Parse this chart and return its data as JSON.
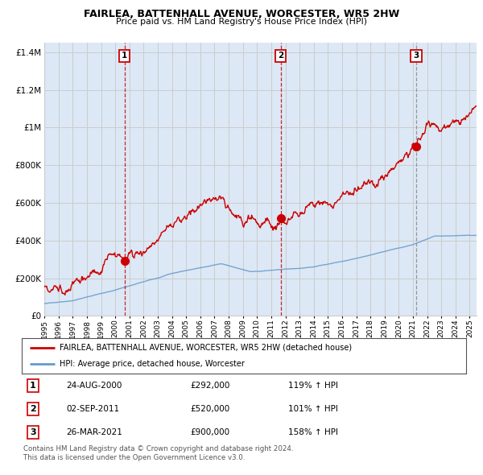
{
  "title": "FAIRLEA, BATTENHALL AVENUE, WORCESTER, WR5 2HW",
  "subtitle": "Price paid vs. HM Land Registry's House Price Index (HPI)",
  "ylabel_ticks": [
    "£0",
    "£200K",
    "£400K",
    "£600K",
    "£800K",
    "£1M",
    "£1.2M",
    "£1.4M"
  ],
  "ytick_values": [
    0,
    200000,
    400000,
    600000,
    800000,
    1000000,
    1200000,
    1400000
  ],
  "ylim": [
    0,
    1450000
  ],
  "xlim_start": 1995.0,
  "xlim_end": 2025.5,
  "sale_points": [
    {
      "year": 2000.65,
      "price": 292000,
      "label": "1",
      "date": "24-AUG-2000",
      "price_str": "£292,000",
      "hpi_pct": "119% ↑ HPI"
    },
    {
      "year": 2011.67,
      "price": 520000,
      "label": "2",
      "date": "02-SEP-2011",
      "price_str": "£520,000",
      "hpi_pct": "101% ↑ HPI"
    },
    {
      "year": 2021.23,
      "price": 900000,
      "label": "3",
      "date": "26-MAR-2021",
      "price_str": "£900,000",
      "hpi_pct": "158% ↑ HPI"
    }
  ],
  "sale_line_colors": [
    "#cc0000",
    "#cc0000",
    "#888888"
  ],
  "sale_line_styles": [
    "--",
    "--",
    "--"
  ],
  "xtick_years": [
    1995,
    1996,
    1997,
    1998,
    1999,
    2000,
    2001,
    2002,
    2003,
    2004,
    2005,
    2006,
    2007,
    2008,
    2009,
    2010,
    2011,
    2012,
    2013,
    2014,
    2015,
    2016,
    2017,
    2018,
    2019,
    2020,
    2021,
    2022,
    2023,
    2024,
    2025
  ],
  "legend_line1": "FAIRLEA, BATTENHALL AVENUE, WORCESTER, WR5 2HW (detached house)",
  "legend_line2": "HPI: Average price, detached house, Worcester",
  "footer1": "Contains HM Land Registry data © Crown copyright and database right 2024.",
  "footer2": "This data is licensed under the Open Government Licence v3.0.",
  "red_color": "#cc0000",
  "blue_color": "#6699cc",
  "grid_color": "#cccccc",
  "background_color": "#ffffff",
  "plot_bg_color": "#dce8f5"
}
